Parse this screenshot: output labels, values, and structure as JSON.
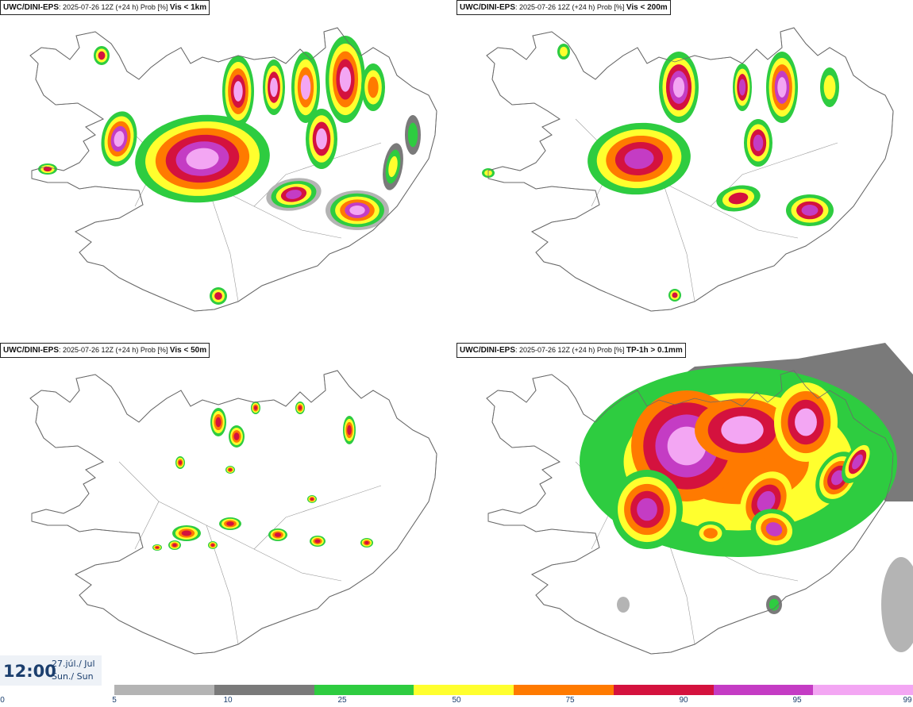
{
  "panels": [
    {
      "model": "UWC/DINI-EPS",
      "info": ": 2025-07-26 12Z (+24 h) Prob [%]",
      "variable": "Vis < 1km"
    },
    {
      "model": "UWC/DINI-EPS",
      "info": ": 2025-07-26 12Z (+24 h) Prob [%]",
      "variable": "Vis < 200m"
    },
    {
      "model": "UWC/DINI-EPS",
      "info": ": 2025-07-26 12Z (+24 h) Prob [%]",
      "variable": "Vis < 50m"
    },
    {
      "model": "UWC/DINI-EPS",
      "info": ": 2025-07-26 12Z (+24 h) Prob [%]",
      "variable": "TP-1h > 0.1mm"
    }
  ],
  "valid_time": {
    "time": "12:00",
    "date_line1": "27.júl./ Jul",
    "date_line2": "Sun./ Sun"
  },
  "colorbar": {
    "ticks": [
      "0",
      "5",
      "10",
      "25",
      "50",
      "75",
      "90",
      "95",
      "99"
    ],
    "colors": [
      "#b4b4b4",
      "#7a7a7a",
      "#2ecc40",
      "#ffff2e",
      "#ff7a00",
      "#d4123e",
      "#c43cc4",
      "#f3a6f3"
    ]
  },
  "map": {
    "region": "Iceland",
    "land_fill": "#ffffff",
    "coast_color": "#6a6a6a"
  }
}
